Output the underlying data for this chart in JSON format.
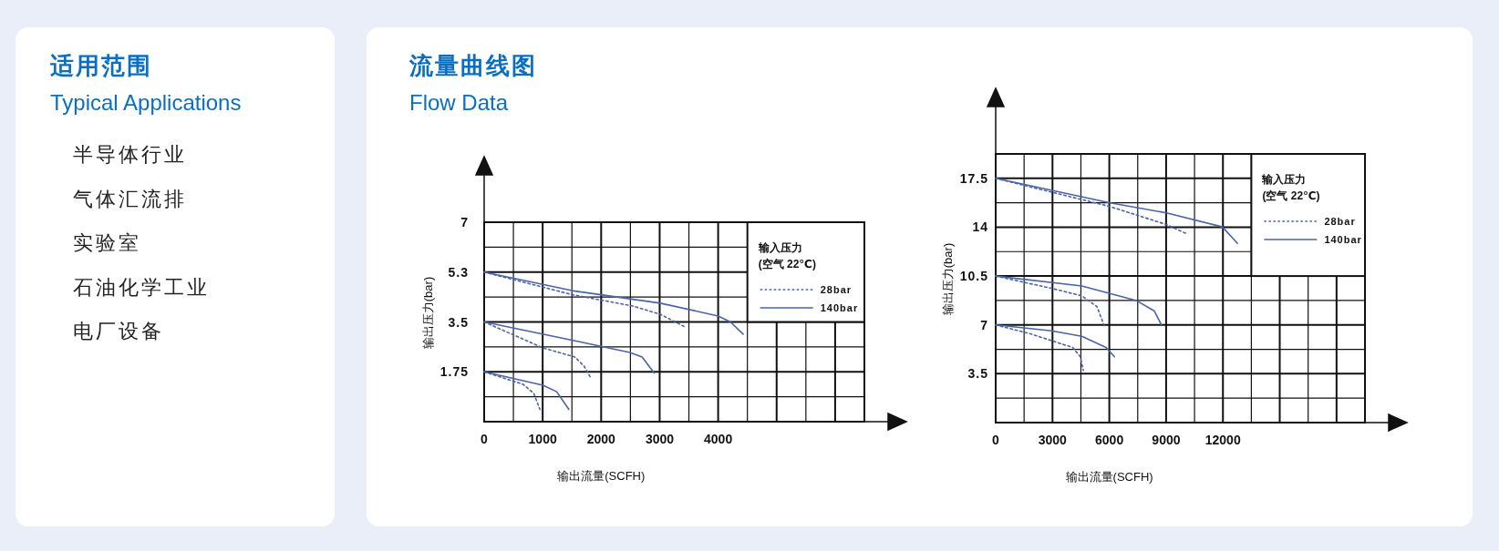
{
  "chart_data": [
    {
      "type": "other",
      "title": "适用范围",
      "subtitle": "Typical Applications",
      "annotations": [
        "半导体行业",
        "气体汇流排",
        "实验室",
        "石油化学工业",
        "电厂设备"
      ]
    },
    {
      "type": "line",
      "title": "流量曲线图",
      "subtitle": "Flow Data",
      "xlabel": "输出流量(SCFH)",
      "ylabel": "输出压力(bar)",
      "xlim": [
        0,
        6500
      ],
      "ylim": [
        0,
        7
      ],
      "xticks": [
        0,
        1000,
        2000,
        3000,
        4000
      ],
      "yticks": [
        1.75,
        3.5,
        {
          "value": 5.25,
          "label": "5.3"
        },
        7
      ],
      "grid": true,
      "legend": "top right",
      "legend_title": "输入压力\n(空气 22℃)",
      "series": [
        {
          "name": "28bar",
          "color": "#4a64a4",
          "line_style": "dotted",
          "x": [
            0,
            1500,
            2540,
            3010,
            3450
          ],
          "values": [
            5.25,
            4.46,
            4.06,
            3.77,
            3.31
          ]
        },
        {
          "name": "140bar",
          "color": "#4a64a4",
          "line_style": "solid",
          "x": [
            0,
            1500,
            3010,
            4000,
            4210,
            4427
          ],
          "values": [
            5.25,
            4.6,
            4.16,
            3.71,
            3.5,
            3.07
          ]
        },
        {
          "color": "#4a64a4",
          "line_style": "dotted",
          "x": [
            0,
            1005,
            1550,
            1708,
            1810
          ],
          "values": [
            3.5,
            2.59,
            2.27,
            1.95,
            1.58
          ]
        },
        {
          "color": "#4a64a4",
          "line_style": "solid",
          "x": [
            0,
            1500,
            2490,
            2700,
            2906
          ],
          "values": [
            3.5,
            2.86,
            2.43,
            2.27,
            1.71
          ]
        },
        {
          "color": "#4a64a4",
          "line_style": "dotted",
          "x": [
            0,
            667,
            849,
            953
          ],
          "values": [
            1.75,
            1.31,
            0.99,
            0.43
          ]
        },
        {
          "color": "#4a64a4",
          "line_style": "solid",
          "x": [
            0,
            1005,
            1240,
            1448
          ],
          "values": [
            1.75,
            1.28,
            1.05,
            0.43
          ]
        }
      ]
    },
    {
      "type": "line",
      "xlabel": "输出流量(SCFH)",
      "ylabel": "输出压力(bar)",
      "xlim": [
        0,
        19500
      ],
      "ylim": [
        0,
        19.25
      ],
      "xticks": [
        0,
        3000,
        6000,
        9000,
        12000
      ],
      "yticks": [
        3.5,
        7,
        10.5,
        14,
        17.5
      ],
      "grid": true,
      "legend": "top right",
      "legend_title": "输入压力\n(空气 22℃)",
      "series": [
        {
          "name": "28bar",
          "color": "#4a64a4",
          "line_style": "dotted",
          "x": [
            0,
            5985,
            9017,
            10135
          ],
          "values": [
            17.5,
            15.5,
            14.19,
            13.5
          ]
        },
        {
          "name": "140bar",
          "color": "#4a64a4",
          "line_style": "solid",
          "x": [
            0,
            5985,
            9017,
            11970,
            12770
          ],
          "values": [
            17.5,
            15.76,
            15.02,
            14.02,
            12.84
          ]
        },
        {
          "color": "#4a64a4",
          "line_style": "dotted",
          "x": [
            0,
            2952,
            4549,
            5347,
            5714
          ],
          "values": [
            10.5,
            9.62,
            9.08,
            8.31,
            7.01
          ]
        },
        {
          "color": "#4a64a4",
          "line_style": "solid",
          "x": [
            0,
            4549,
            7420,
            8380,
            8746
          ],
          "values": [
            10.5,
            9.79,
            8.75,
            7.99,
            7.01
          ]
        },
        {
          "color": "#4a64a4",
          "line_style": "dotted",
          "x": [
            0,
            1836,
            4070,
            4469,
            4629
          ],
          "values": [
            7,
            6.36,
            5.38,
            4.72,
            3.74
          ]
        },
        {
          "color": "#4a64a4",
          "line_style": "solid",
          "x": [
            0,
            2952,
            4549,
            5826,
            6273
          ],
          "values": [
            7,
            6.57,
            6.18,
            5.38,
            4.72
          ]
        }
      ]
    }
  ]
}
